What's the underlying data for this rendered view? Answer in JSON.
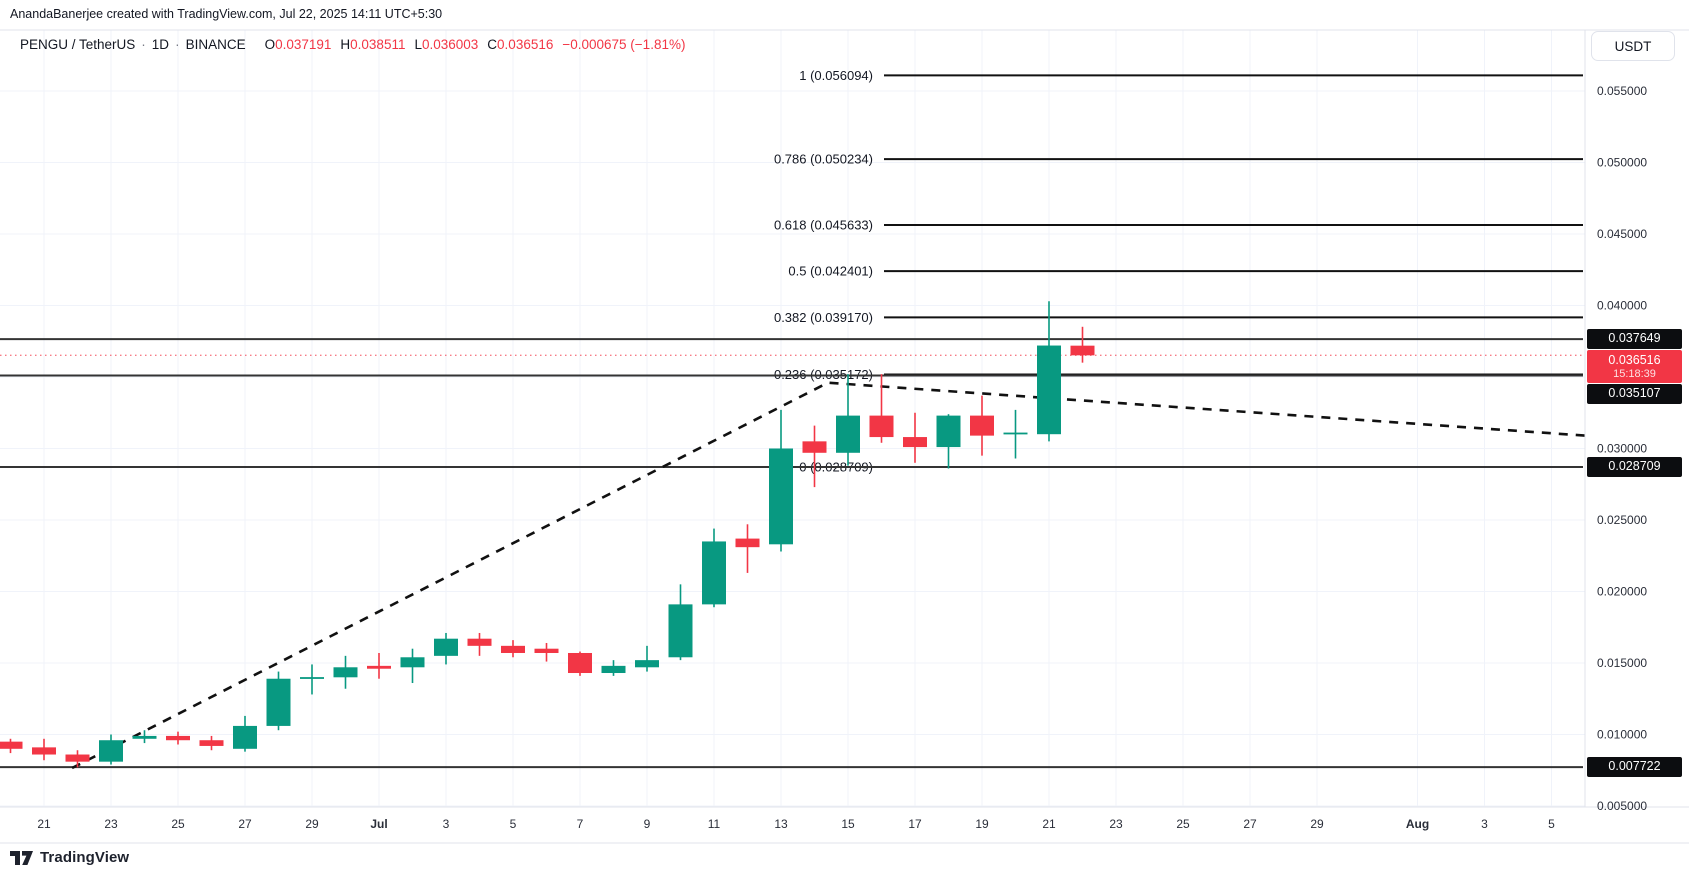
{
  "attribution": "AnandaBanerjee created with TradingView.com, Jul 22, 2025 14:11 UTC+5:30",
  "legend": {
    "symbol": "PENGU / TetherUS",
    "separator": "·",
    "interval": "1D",
    "exchange": "BINANCE",
    "ohlc": [
      {
        "label": "O",
        "value": "0.037191"
      },
      {
        "label": "H",
        "value": "0.038511"
      },
      {
        "label": "L",
        "value": "0.036003"
      },
      {
        "label": "C",
        "value": "0.036516"
      }
    ],
    "change": "−0.000675 (−1.81%)"
  },
  "price_axis": {
    "currency_button": "USDT",
    "ticks": [
      "0.055000",
      "0.050000",
      "0.045000",
      "0.040000",
      "0.030000",
      "0.025000",
      "0.020000",
      "0.015000",
      "0.010000",
      "0.005000"
    ],
    "badges": [
      {
        "value": "0.037649",
        "style": "black"
      },
      {
        "value": "0.036516",
        "time": "15:18:39",
        "style": "red"
      },
      {
        "value": "0.035107",
        "style": "black"
      },
      {
        "value": "0.028709",
        "style": "black"
      },
      {
        "value": "0.007722",
        "style": "black"
      }
    ]
  },
  "time_axis": {
    "ticks": [
      {
        "label": "21",
        "d": 0
      },
      {
        "label": "23",
        "d": 2
      },
      {
        "label": "25",
        "d": 4
      },
      {
        "label": "27",
        "d": 6
      },
      {
        "label": "29",
        "d": 8
      },
      {
        "label": "Jul",
        "d": 10,
        "bold": true
      },
      {
        "label": "3",
        "d": 12
      },
      {
        "label": "5",
        "d": 14
      },
      {
        "label": "7",
        "d": 16
      },
      {
        "label": "9",
        "d": 18
      },
      {
        "label": "11",
        "d": 20
      },
      {
        "label": "13",
        "d": 22
      },
      {
        "label": "15",
        "d": 24
      },
      {
        "label": "17",
        "d": 26
      },
      {
        "label": "19",
        "d": 28
      },
      {
        "label": "21",
        "d": 30
      },
      {
        "label": "23",
        "d": 32
      },
      {
        "label": "25",
        "d": 34
      },
      {
        "label": "27",
        "d": 36
      },
      {
        "label": "29",
        "d": 38
      },
      {
        "label": "Aug",
        "d": 41,
        "bold": true
      },
      {
        "label": "3",
        "d": 43
      },
      {
        "label": "5",
        "d": 45
      }
    ]
  },
  "footer": {
    "logo_text": "TradingView"
  },
  "colors": {
    "up": "#089981",
    "down": "#f23645",
    "fib_line": "#111111",
    "h_line": "#343434",
    "grid": "#f0f3fa",
    "text": "#131722",
    "axis_text": "#2a2e39",
    "border": "#e0e3eb",
    "dotted_price": "#f23645"
  },
  "chart_data": {
    "type": "candlestick",
    "title": "PENGU / TetherUS · 1D · BINANCE",
    "x_unit": "days since Jun 21, 2025",
    "y_axis": {
      "ticks": [
        0.055,
        0.05,
        0.045,
        0.04,
        0.035,
        0.03,
        0.025,
        0.02,
        0.015,
        0.01,
        0.005
      ],
      "range_top": 0.0593,
      "range_bottom": 0.0049
    },
    "candles": [
      {
        "date": "Jun 20",
        "d": -1,
        "o": 0.0095,
        "h": 0.0097,
        "l": 0.0087,
        "c": 0.009
      },
      {
        "date": "Jun 21",
        "d": 0,
        "o": 0.0091,
        "h": 0.0097,
        "l": 0.0082,
        "c": 0.0086
      },
      {
        "date": "Jun 22",
        "d": 1,
        "o": 0.0086,
        "h": 0.0089,
        "l": 0.0077,
        "c": 0.0081
      },
      {
        "date": "Jun 23",
        "d": 2,
        "o": 0.0081,
        "h": 0.01,
        "l": 0.0079,
        "c": 0.0096
      },
      {
        "date": "Jun 24",
        "d": 3,
        "o": 0.0097,
        "h": 0.0103,
        "l": 0.0094,
        "c": 0.0099
      },
      {
        "date": "Jun 25",
        "d": 4,
        "o": 0.0099,
        "h": 0.0102,
        "l": 0.0093,
        "c": 0.0096
      },
      {
        "date": "Jun 26",
        "d": 5,
        "o": 0.0096,
        "h": 0.0099,
        "l": 0.0089,
        "c": 0.0092
      },
      {
        "date": "Jun 27",
        "d": 6,
        "o": 0.009,
        "h": 0.0113,
        "l": 0.0088,
        "c": 0.0106
      },
      {
        "date": "Jun 28",
        "d": 7,
        "o": 0.0106,
        "h": 0.0144,
        "l": 0.0103,
        "c": 0.0139
      },
      {
        "date": "Jun 29",
        "d": 8,
        "o": 0.0139,
        "h": 0.0149,
        "l": 0.0128,
        "c": 0.014
      },
      {
        "date": "Jun 30",
        "d": 9,
        "o": 0.014,
        "h": 0.0155,
        "l": 0.0132,
        "c": 0.0147
      },
      {
        "date": "Jul 1",
        "d": 10,
        "o": 0.0148,
        "h": 0.0157,
        "l": 0.0139,
        "c": 0.0146
      },
      {
        "date": "Jul 2",
        "d": 11,
        "o": 0.0147,
        "h": 0.016,
        "l": 0.0136,
        "c": 0.0154
      },
      {
        "date": "Jul 3",
        "d": 12,
        "o": 0.0155,
        "h": 0.0171,
        "l": 0.0149,
        "c": 0.0167
      },
      {
        "date": "Jul 4",
        "d": 13,
        "o": 0.0167,
        "h": 0.0171,
        "l": 0.0155,
        "c": 0.0162
      },
      {
        "date": "Jul 5",
        "d": 14,
        "o": 0.0162,
        "h": 0.0166,
        "l": 0.0154,
        "c": 0.0157
      },
      {
        "date": "Jul 6",
        "d": 15,
        "o": 0.016,
        "h": 0.0164,
        "l": 0.0151,
        "c": 0.0157
      },
      {
        "date": "Jul 7",
        "d": 16,
        "o": 0.0157,
        "h": 0.0158,
        "l": 0.0141,
        "c": 0.0143
      },
      {
        "date": "Jul 8",
        "d": 17,
        "o": 0.0143,
        "h": 0.0152,
        "l": 0.0141,
        "c": 0.0148
      },
      {
        "date": "Jul 9",
        "d": 18,
        "o": 0.0147,
        "h": 0.0162,
        "l": 0.0144,
        "c": 0.0152
      },
      {
        "date": "Jul 10",
        "d": 19,
        "o": 0.0154,
        "h": 0.0205,
        "l": 0.0152,
        "c": 0.0191
      },
      {
        "date": "Jul 11",
        "d": 20,
        "o": 0.0191,
        "h": 0.0244,
        "l": 0.0189,
        "c": 0.0235
      },
      {
        "date": "Jul 12",
        "d": 21,
        "o": 0.0237,
        "h": 0.0247,
        "l": 0.0213,
        "c": 0.0231
      },
      {
        "date": "Jul 13",
        "d": 22,
        "o": 0.0233,
        "h": 0.0327,
        "l": 0.0228,
        "c": 0.03
      },
      {
        "date": "Jul 14",
        "d": 23,
        "o": 0.0305,
        "h": 0.0316,
        "l": 0.0273,
        "c": 0.0297
      },
      {
        "date": "Jul 15",
        "d": 24,
        "o": 0.0297,
        "h": 0.0352,
        "l": 0.0288,
        "c": 0.0323
      },
      {
        "date": "Jul 16",
        "d": 25,
        "o": 0.0323,
        "h": 0.0352,
        "l": 0.0304,
        "c": 0.0308
      },
      {
        "date": "Jul 17",
        "d": 26,
        "o": 0.0308,
        "h": 0.0325,
        "l": 0.029,
        "c": 0.0301
      },
      {
        "date": "Jul 18",
        "d": 27,
        "o": 0.0301,
        "h": 0.0324,
        "l": 0.0286,
        "c": 0.0323
      },
      {
        "date": "Jul 19",
        "d": 28,
        "o": 0.0323,
        "h": 0.0337,
        "l": 0.0295,
        "c": 0.0309
      },
      {
        "date": "Jul 20",
        "d": 29,
        "o": 0.031,
        "h": 0.0327,
        "l": 0.0293,
        "c": 0.0311
      },
      {
        "date": "Jul 21",
        "d": 30,
        "o": 0.031,
        "h": 0.0403,
        "l": 0.0305,
        "c": 0.0372
      },
      {
        "date": "Jul 22",
        "d": 31,
        "o": 0.037191,
        "h": 0.038511,
        "l": 0.036003,
        "c": 0.036516
      }
    ],
    "fib_levels": [
      {
        "label": "1",
        "price": 0.056094,
        "text": "1 (0.056094)"
      },
      {
        "label": "0.786",
        "price": 0.050234,
        "text": "0.786 (0.050234)"
      },
      {
        "label": "0.618",
        "price": 0.045633,
        "text": "0.618 (0.045633)"
      },
      {
        "label": "0.5",
        "price": 0.042401,
        "text": "0.5 (0.042401)"
      },
      {
        "label": "0.382",
        "price": 0.03917,
        "text": "0.382 (0.039170)"
      },
      {
        "label": "0.236",
        "price": 0.035172,
        "text": "0.236 (0.035172)"
      },
      {
        "label": "0",
        "price": 0.028709,
        "text": "0 (0.028709)"
      }
    ],
    "h_lines": [
      0.037649,
      0.035107,
      0.028709,
      0.007722
    ],
    "current_price_line": 0.036516,
    "trendline": {
      "style": "dashed",
      "points": [
        {
          "d": 0.84,
          "price": 0.00766
        },
        {
          "d": 23.4,
          "price": 0.0346
        },
        {
          "d": 46.0,
          "price": 0.0309
        }
      ]
    },
    "legend_position": "fib labels left of lines, price scale right",
    "grid": true
  }
}
